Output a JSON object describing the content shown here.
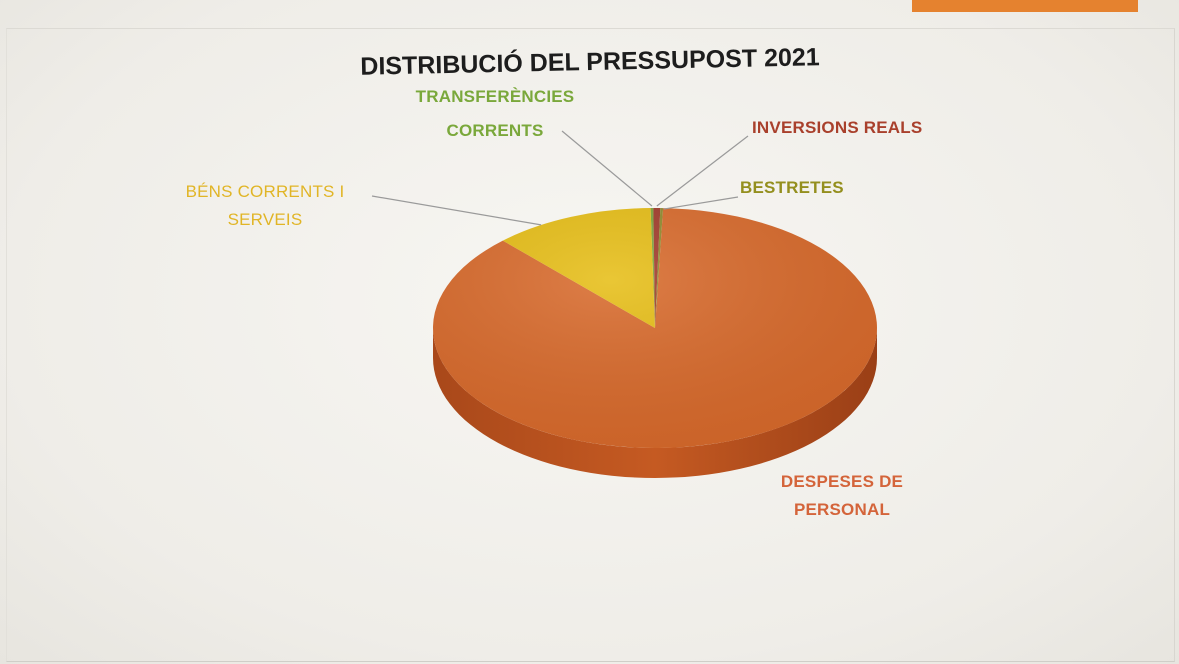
{
  "chart_data": {
    "type": "pie",
    "title": "DISTRIBUCIÓ DEL PRESSUPOST 2021",
    "categories": [
      "DESPESES DE PERSONAL",
      "BÉNS CORRENTS I SERVEIS",
      "TRANSFERÈNCIES CORRENTS",
      "INVERSIONS REALS",
      "BESTRETES"
    ],
    "values": [
      87.4,
      11.7,
      0.2,
      0.5,
      0.2
    ],
    "unit": "%",
    "colors": [
      "#d8692a",
      "#e6bd14",
      "#7fa53a",
      "#a13a2a",
      "#8f8a2c"
    ],
    "label_colors": [
      "#d4643a",
      "#e1b526",
      "#7aa83b",
      "#a9402c",
      "#948f1e"
    ],
    "legend": "none",
    "labels": {
      "despeses": [
        "DESPESES DE",
        "PERSONAL"
      ],
      "bens": [
        "BÉNS CORRENTS I",
        "SERVEIS"
      ],
      "transferencies": [
        "TRANSFERÈNCIES",
        "CORRENTS"
      ],
      "inversions": [
        "INVERSIONS REALS"
      ],
      "bestretes": [
        "BESTRETES"
      ]
    }
  }
}
